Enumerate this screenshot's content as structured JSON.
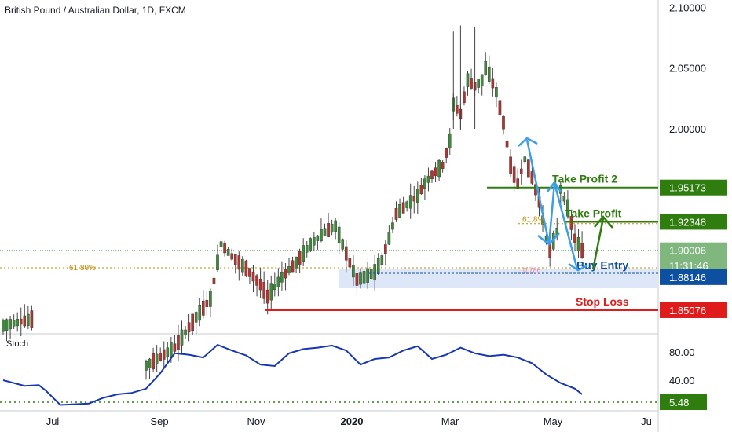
{
  "symbol_title": "British Pound / Australian Dollar, 1D, FXCM",
  "chart_data": {
    "type": "candlestick",
    "title": "British Pound / Australian Dollar, 1D, FXCM",
    "price_axis": {
      "ticks": [
        "2.10000",
        "2.05000",
        "2.00000"
      ],
      "range": [
        1.832,
        2.106
      ]
    },
    "time_axis": {
      "labels": [
        {
          "text": "Jul",
          "bold": false
        },
        {
          "text": "Sep",
          "bold": false
        },
        {
          "text": "Nov",
          "bold": false
        },
        {
          "text": "2020",
          "bold": true
        },
        {
          "text": "Mar",
          "bold": false
        },
        {
          "text": "May",
          "bold": false
        },
        {
          "text": "Ju",
          "bold": false
        }
      ]
    },
    "series_path": [
      [
        0,
        1.838
      ],
      [
        6,
        1.842
      ],
      [
        10,
        1.845
      ],
      [
        14,
        1.838
      ],
      [
        18,
        1.824
      ],
      [
        24,
        1.81
      ],
      [
        32,
        1.8
      ],
      [
        40,
        1.805
      ],
      [
        48,
        1.82
      ],
      [
        54,
        1.845
      ],
      [
        58,
        1.86
      ],
      [
        60,
        1.89
      ],
      [
        61,
        1.905
      ],
      [
        64,
        1.895
      ],
      [
        68,
        1.885
      ],
      [
        72,
        1.872
      ],
      [
        74,
        1.862
      ],
      [
        78,
        1.878
      ],
      [
        82,
        1.89
      ],
      [
        86,
        1.905
      ],
      [
        90,
        1.915
      ],
      [
        93,
        1.92
      ],
      [
        95,
        1.905
      ],
      [
        97,
        1.89
      ],
      [
        99,
        1.876
      ],
      [
        101,
        1.878
      ],
      [
        104,
        1.882
      ],
      [
        106,
        1.892
      ],
      [
        108,
        1.91
      ],
      [
        110,
        1.93
      ],
      [
        112,
        1.935
      ],
      [
        114,
        1.94
      ],
      [
        116,
        1.945
      ],
      [
        118,
        1.955
      ],
      [
        120,
        1.962
      ],
      [
        123,
        1.97
      ],
      [
        125,
        1.99
      ],
      [
        126,
        2.02
      ],
      [
        128,
        2.012
      ],
      [
        130,
        2.04
      ],
      [
        132,
        2.035
      ],
      [
        134,
        2.04
      ],
      [
        135,
        2.05
      ],
      [
        136,
        2.045
      ],
      [
        138,
        2.03
      ],
      [
        140,
        2.005
      ],
      [
        142,
        1.97
      ],
      [
        144,
        1.955
      ],
      [
        146,
        1.975
      ],
      [
        148,
        1.96
      ],
      [
        150,
        1.94
      ],
      [
        152,
        1.91
      ],
      [
        153,
        1.9
      ],
      [
        155,
        1.915
      ],
      [
        156,
        1.95
      ],
      [
        158,
        1.935
      ],
      [
        160,
        1.91
      ],
      [
        162,
        1.9
      ]
    ],
    "stoch_series": [
      [
        0,
        40
      ],
      [
        6,
        32
      ],
      [
        10,
        33
      ],
      [
        12,
        25
      ],
      [
        16,
        5
      ],
      [
        20,
        6
      ],
      [
        24,
        7
      ],
      [
        28,
        15
      ],
      [
        32,
        20
      ],
      [
        36,
        22
      ],
      [
        40,
        28
      ],
      [
        44,
        50
      ],
      [
        48,
        78
      ],
      [
        52,
        76
      ],
      [
        56,
        72
      ],
      [
        60,
        90
      ],
      [
        64,
        82
      ],
      [
        68,
        75
      ],
      [
        72,
        62
      ],
      [
        76,
        60
      ],
      [
        80,
        78
      ],
      [
        84,
        84
      ],
      [
        88,
        86
      ],
      [
        92,
        89
      ],
      [
        96,
        82
      ],
      [
        100,
        62
      ],
      [
        104,
        70
      ],
      [
        108,
        72
      ],
      [
        112,
        82
      ],
      [
        116,
        88
      ],
      [
        120,
        70
      ],
      [
        124,
        76
      ],
      [
        128,
        86
      ],
      [
        132,
        78
      ],
      [
        136,
        74
      ],
      [
        140,
        76
      ],
      [
        144,
        72
      ],
      [
        148,
        64
      ],
      [
        152,
        48
      ],
      [
        156,
        36
      ],
      [
        160,
        28
      ],
      [
        162,
        20
      ]
    ],
    "stoch_axis": {
      "ticks": [
        "80.00",
        "40.00"
      ],
      "range": [
        0,
        100
      ]
    },
    "annotations": {
      "take_profit_2": {
        "label": "Take Profit 2",
        "price": 1.95173,
        "price_label": "1.95173",
        "color": "#2e7d0e"
      },
      "take_profit": {
        "label": "Take Profit",
        "price": 1.92348,
        "price_label": "1.92348",
        "color": "#2e7d0e"
      },
      "current": {
        "price": 1.90006,
        "price_label": "1.90006",
        "color": "#7fb77e"
      },
      "countdown": {
        "text": "11:31:46",
        "color": "#7fb77e"
      },
      "buy_entry": {
        "label": "Buy Entry",
        "price": 1.88146,
        "price_label": "1.88146",
        "color": "#0d4fa0"
      },
      "stop_loss": {
        "label": "Stop Loss",
        "price": 1.85076,
        "price_label": "1.85076",
        "color": "#e01b1b"
      },
      "fib_left": {
        "text": "61.80%",
        "color": "#c28a00"
      },
      "fib_right": {
        "text": "61.8%",
        "color": "#c28a00"
      },
      "fib_small": {
        "text": "0.786",
        "color": "#e88aa0"
      },
      "stoch_low": {
        "price_label": "5.48",
        "color": "#2e7d0e"
      }
    },
    "stoch_title": "Stoch",
    "colors": {
      "up": "#3f8a3a",
      "down": "#b5322e",
      "stoch": "#1636b4",
      "blue_arrow": "#3d9ee8"
    }
  }
}
